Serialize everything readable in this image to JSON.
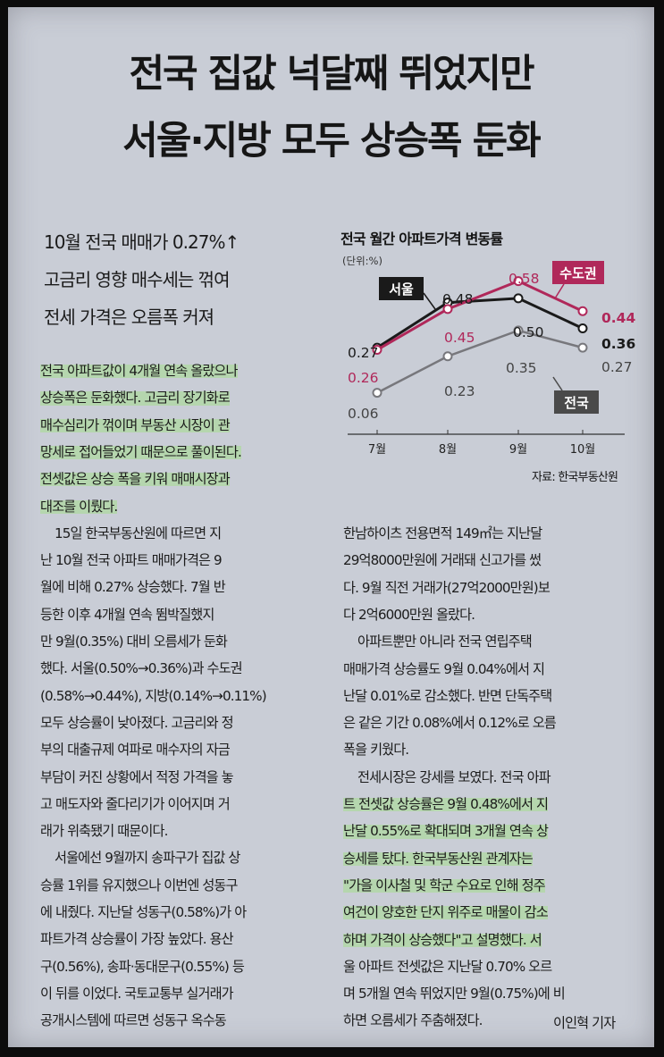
{
  "article": {
    "headline_1": "전국 집값 넉달째 뛰었지만",
    "headline_2": "서울·지방 모두 상승폭 둔화",
    "subheads": [
      "10월 전국 매매가 0.27%↑",
      "고금리 영향 매수세는 꺾여",
      "전세 가격은 오름폭 커져"
    ],
    "left_column": [
      "전국 아파트값이 4개월 연속 올랐으나",
      "상승폭은 둔화했다. 고금리 장기화로",
      "매수심리가 꺾이며 부동산 시장이 관",
      "망세로 접어들었기 때문으로 풀이된다.",
      "전셋값은 상승 폭을 키워 매매시장과",
      "대조를 이뤘다.",
      "15일 한국부동산원에 따르면 지",
      "난 10월 전국 아파트 매매가격은 9",
      "월에 비해 0.27% 상승했다. 7월 반",
      "등한 이후 4개월 연속 뜀박질했지",
      "만 9월(0.35%) 대비 오름세가 둔화",
      "했다. 서울(0.50%→0.36%)과 수도권",
      "(0.58%→0.44%), 지방(0.14%→0.11%)",
      "모두 상승률이 낮아졌다. 고금리와 정",
      "부의 대출규제 여파로 매수자의 자금",
      "부담이 커진 상황에서 적정 가격을 놓",
      "고 매도자와 줄다리기가 이어지며 거",
      "래가 위축됐기 때문이다.",
      "서울에선 9월까지 송파구가 집값 상",
      "승률 1위를 유지했으나 이번엔 성동구",
      "에 내줬다. 지난달 성동구(0.58%)가 아",
      "파트가격 상승률이 가장 높았다. 용산",
      "구(0.56%), 송파·동대문구(0.55%) 등",
      "이 뒤를 이었다. 국토교통부 실거래가",
      "공개시스템에 따르면 성동구 옥수동"
    ],
    "right_column": [
      "한남하이츠 전용면적 149㎡는 지난달",
      "29억8000만원에 거래돼 신고가를 썼",
      "다. 9월 직전 거래가(27억2000만원)보",
      "다 2억6000만원 올랐다.",
      "아파트뿐만 아니라 전국 연립주택",
      "매매가격 상승률도 9월 0.04%에서 지",
      "난달 0.01%로 감소했다. 반면 단독주택",
      "은 같은 기간 0.08%에서 0.12%로 오름",
      "폭을 키웠다.",
      "전세시장은 강세를 보였다. 전국 아파",
      "트 전셋값 상승률은 9월 0.48%에서 지",
      "난달 0.55%로 확대되며 3개월 연속 상",
      "승세를 탔다. 한국부동산원 관계자는",
      "\"가을 이사철 및 학군 수요로 인해 정주",
      "여건이 양호한 단지 위주로 매물이 감소",
      "하며 가격이 상승했다\"고 설명했다. 서",
      "울 아파트 전셋값은 지난달 0.70% 오르",
      "며 5개월 연속 뛰었지만 9월(0.75%)에 비",
      "하면 오름세가 주춤해졌다."
    ],
    "byline": "이인혁 기자"
  },
  "chart_data": {
    "type": "line",
    "title": "전국 월간 아파트가격 변동률",
    "unit": "(단위:%)",
    "categories": [
      "7월",
      "8월",
      "9월",
      "10월"
    ],
    "series": [
      {
        "name": "서울",
        "values": [
          0.27,
          0.48,
          0.5,
          0.36
        ],
        "labels": [
          "0.27",
          "0.48",
          "0.50",
          "0.36"
        ],
        "color": "#1a1a1a"
      },
      {
        "name": "수도권",
        "values": [
          0.26,
          0.45,
          0.58,
          0.44
        ],
        "labels": [
          "0.26",
          "0.45",
          "0.58",
          "0.44"
        ],
        "color": "#b0285a"
      },
      {
        "name": "전국",
        "values": [
          0.06,
          0.23,
          0.35,
          0.27
        ],
        "labels": [
          "0.06",
          "0.23",
          "0.35",
          "0.27"
        ],
        "color": "#77777c"
      }
    ],
    "ylim": [
      0,
      0.62
    ],
    "grid": false,
    "legend": "direct labels on lines",
    "source": "자료: 한국부동산원"
  }
}
